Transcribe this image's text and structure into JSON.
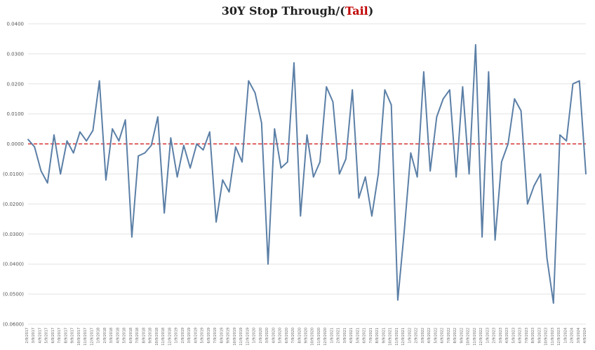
{
  "title": {
    "prefix": "30Y Stop Through/(",
    "tail": "Tail",
    "suffix": ")"
  },
  "colors": {
    "line": "#5b7fa6",
    "zero_line": "#d42020",
    "grid": "#e3e3e3",
    "tail_text": "#c00000"
  },
  "chart_data": {
    "type": "line",
    "title": "30Y Stop Through/(Tail)",
    "ylim": [
      -0.06,
      0.04
    ],
    "yticks": [
      0.04,
      0.03,
      0.02,
      0.01,
      0.0,
      -0.01,
      -0.02,
      -0.03,
      -0.04,
      -0.05,
      -0.06
    ],
    "ytick_labels": [
      "0.0400",
      "0.0300",
      "0.0200",
      "0.0100",
      "0.0000",
      "(0.0100)",
      "(0.0200)",
      "(0.0300)",
      "(0.0400)",
      "(0.0500)",
      "(0.0600)"
    ],
    "grid": true,
    "zero_line": {
      "style": "dashed",
      "color": "#d42020"
    },
    "xtick_labels": [
      "2/9/2017",
      "3/9/2017",
      "4/9/2017",
      "5/9/2017",
      "6/9/2017",
      "7/9/2017",
      "8/9/2017",
      "9/9/2017",
      "10/9/2017",
      "11/9/2017",
      "12/9/2017",
      "1/9/2018",
      "2/9/2018",
      "3/9/2018",
      "4/9/2018",
      "5/9/2018",
      "6/9/2018",
      "7/9/2018",
      "8/9/2018",
      "9/9/2018",
      "10/9/2018",
      "11/9/2018",
      "12/9/2018",
      "1/9/2019",
      "2/9/2019",
      "3/9/2019",
      "4/9/2019",
      "5/9/2019",
      "6/9/2019",
      "7/9/2019",
      "8/9/2019",
      "9/9/2019",
      "10/9/2019",
      "11/9/2019",
      "12/9/2019",
      "1/9/2020",
      "2/9/2020",
      "3/9/2020",
      "4/9/2020",
      "5/9/2020",
      "6/9/2020",
      "7/9/2020",
      "8/9/2020",
      "9/9/2020",
      "10/9/2020",
      "11/9/2020",
      "12/9/2020",
      "1/9/2021",
      "2/9/2021",
      "3/9/2021",
      "4/9/2021",
      "5/9/2021",
      "6/9/2021",
      "7/9/2021",
      "8/9/2021",
      "9/9/2021",
      "10/9/2021",
      "11/9/2021",
      "12/9/2021",
      "1/9/2022",
      "2/9/2022",
      "3/9/2022",
      "4/9/2022",
      "5/9/2022",
      "6/9/2022",
      "7/9/2022",
      "8/9/2022",
      "9/9/2022",
      "10/9/2022",
      "11/9/2022",
      "12/9/2022",
      "1/9/2023",
      "2/9/2023",
      "3/9/2023",
      "4/9/2023",
      "5/9/2023",
      "6/9/2023",
      "7/9/2023",
      "8/9/2023",
      "9/9/2023",
      "10/9/2023",
      "11/9/2023",
      "12/9/2023",
      "1/9/2024",
      "2/9/2024",
      "3/9/2024",
      "4/9/2024"
    ],
    "series": [
      {
        "values": [
          0.0015,
          -0.001,
          -0.009,
          -0.013,
          0.003,
          -0.01,
          0.001,
          -0.003,
          0.004,
          0.001,
          0.0045,
          0.021,
          -0.012,
          0.005,
          0.001,
          0.008,
          -0.031,
          -0.004,
          -0.003,
          -0.0005,
          0.009,
          -0.023,
          0.002,
          -0.011,
          -0.0005,
          -0.008,
          0.0,
          -0.002,
          0.004,
          -0.026,
          -0.012,
          -0.016,
          -0.001,
          -0.006,
          0.021,
          0.017,
          0.007,
          -0.04,
          0.005,
          -0.008,
          -0.006,
          0.027,
          -0.024,
          0.003,
          -0.011,
          -0.006,
          0.019,
          0.014,
          -0.01,
          -0.005,
          0.018,
          -0.018,
          -0.011,
          -0.024,
          -0.01,
          0.018,
          0.013,
          -0.052,
          -0.029,
          -0.003,
          -0.011,
          0.024,
          -0.009,
          0.009,
          0.015,
          0.018,
          -0.011,
          0.019,
          -0.01,
          0.033,
          -0.031,
          0.024,
          -0.032,
          -0.006,
          0.0,
          0.015,
          0.011,
          -0.02,
          -0.014,
          -0.01,
          -0.038,
          -0.053,
          0.003,
          0.001,
          0.02,
          0.021,
          -0.01
        ]
      }
    ]
  }
}
